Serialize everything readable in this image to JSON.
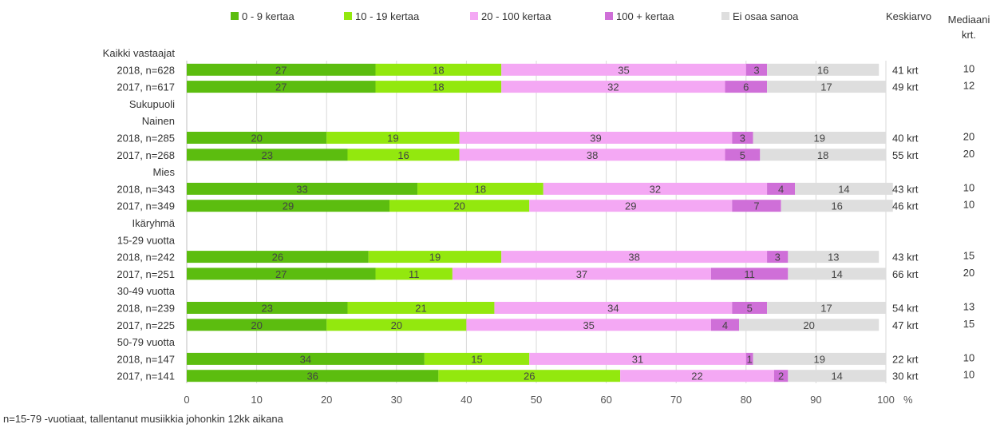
{
  "chart_data": {
    "type": "bar",
    "orientation": "horizontal",
    "stacked": true,
    "xlim": [
      0,
      100
    ],
    "x_ticks": [
      0,
      10,
      20,
      30,
      40,
      50,
      60,
      70,
      80,
      90,
      100
    ],
    "x_unit": "%",
    "legend_position": "top",
    "grid": true,
    "series": [
      {
        "name": "0 - 9 kertaa",
        "color": "#5cbd0f"
      },
      {
        "name": "10 - 19 kertaa",
        "color": "#93e80e"
      },
      {
        "name": "20 - 100 kertaa",
        "color": "#f4a8f4"
      },
      {
        "name": "100 + kertaa",
        "color": "#cf6fd8"
      },
      {
        "name": "Ei osaa sanoa",
        "color": "#dedede"
      }
    ],
    "extra_columns": {
      "mean_header": "Keskiarvo",
      "median_header_line1": "Mediaani",
      "median_header_line2": "krt."
    },
    "rows": [
      {
        "type": "header",
        "label": "Kaikki vastaajat"
      },
      {
        "type": "bar",
        "label": "2018, n=628",
        "values": [
          27,
          18,
          35,
          3,
          16
        ],
        "mean": "41 krt",
        "median": "10"
      },
      {
        "type": "bar",
        "label": "2017, n=617",
        "values": [
          27,
          18,
          32,
          6,
          17
        ],
        "mean": "49 krt",
        "median": "12"
      },
      {
        "type": "header",
        "label": "Sukupuoli"
      },
      {
        "type": "header",
        "label": "Nainen"
      },
      {
        "type": "bar",
        "label": "2018, n=285",
        "values": [
          20,
          19,
          39,
          3,
          19
        ],
        "mean": "40 krt",
        "median": "20"
      },
      {
        "type": "bar",
        "label": "2017, n=268",
        "values": [
          23,
          16,
          38,
          5,
          18
        ],
        "mean": "55 krt",
        "median": "20"
      },
      {
        "type": "header",
        "label": "Mies"
      },
      {
        "type": "bar",
        "label": "2018, n=343",
        "values": [
          33,
          18,
          32,
          4,
          14
        ],
        "mean": "43 krt",
        "median": "10"
      },
      {
        "type": "bar",
        "label": "2017, n=349",
        "values": [
          29,
          20,
          29,
          7,
          16
        ],
        "mean": "46 krt",
        "median": "10"
      },
      {
        "type": "header",
        "label": "Ikäryhmä"
      },
      {
        "type": "header",
        "label": "15-29 vuotta"
      },
      {
        "type": "bar",
        "label": "2018, n=242",
        "values": [
          26,
          19,
          38,
          3,
          13
        ],
        "mean": "43 krt",
        "median": "15"
      },
      {
        "type": "bar",
        "label": "2017, n=251",
        "values": [
          27,
          11,
          37,
          11,
          14
        ],
        "mean": "66 krt",
        "median": "20"
      },
      {
        "type": "header",
        "label": "30-49 vuotta"
      },
      {
        "type": "bar",
        "label": "2018, n=239",
        "values": [
          23,
          21,
          34,
          5,
          17
        ],
        "mean": "54 krt",
        "median": "13"
      },
      {
        "type": "bar",
        "label": "2017, n=225",
        "values": [
          20,
          20,
          35,
          4,
          20
        ],
        "mean": "47 krt",
        "median": "15"
      },
      {
        "type": "header",
        "label": "50-79 vuotta"
      },
      {
        "type": "bar",
        "label": "2018, n=147",
        "values": [
          34,
          15,
          31,
          1,
          19
        ],
        "mean": "22 krt",
        "median": "10"
      },
      {
        "type": "bar",
        "label": "2017, n=141",
        "values": [
          36,
          26,
          22,
          2,
          14
        ],
        "mean": "30 krt",
        "median": "10"
      }
    ]
  },
  "footnote": "n=15-79 -vuotiaat, tallentanut musiikkia johonkin 12kk aikana"
}
